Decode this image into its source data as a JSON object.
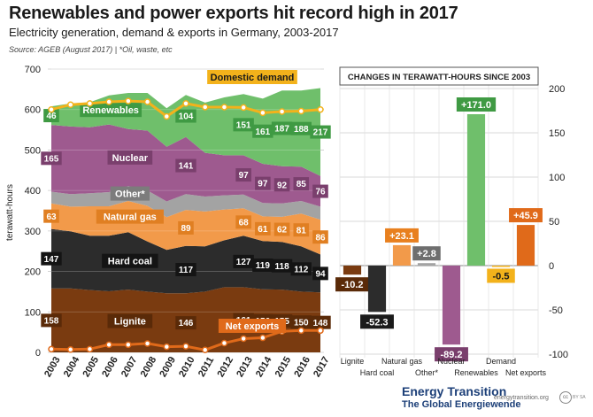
{
  "header": {
    "title": "Renewables and power exports hit record high in 2017",
    "subtitle": "Electricity generation, demand & exports in Germany, 2003-2017",
    "source": "Source: AGEB (August 2017) | *Oil, waste, etc"
  },
  "footer": {
    "brand_line1": "Energy Transition",
    "brand_line2": "The Global Energiewende",
    "site": "energytransition.org",
    "cc": "cc",
    "license": "BY SA"
  },
  "colors": {
    "lignite": "#7a3b10",
    "hard_coal": "#2c2c2c",
    "natural_gas": "#f29a4a",
    "other": "#a3a3a3",
    "nuclear": "#9e5a8f",
    "renewables": "#6fbf6b",
    "demand": "#f3b21b",
    "net_exports": "#e06a1a"
  },
  "chart_data": [
    {
      "type": "area",
      "ylabel": "terawatt-hours",
      "ylim": [
        0,
        700
      ],
      "yticks": [
        0,
        100,
        200,
        300,
        400,
        500,
        600,
        700
      ],
      "x": [
        2003,
        2004,
        2005,
        2006,
        2007,
        2008,
        2009,
        2010,
        2011,
        2012,
        2013,
        2014,
        2015,
        2016,
        2017
      ],
      "stacked": true,
      "grid": true,
      "series": [
        {
          "name": "Lignite",
          "values": [
            158,
            158,
            154,
            151,
            155,
            150,
            146,
            146,
            150,
            161,
            161,
            156,
            155,
            150,
            148
          ],
          "labels": {
            "2003": "158",
            "2010": "146",
            "2013": "161",
            "2014": "156",
            "2015": "155",
            "2016": "150",
            "2017": "148"
          }
        },
        {
          "name": "Hard coal",
          "values": [
            147,
            141,
            134,
            137,
            142,
            124,
            107,
            117,
            112,
            116,
            127,
            119,
            118,
            112,
            94
          ],
          "labels": {
            "2003": "147",
            "2010": "117",
            "2013": "127",
            "2014": "119",
            "2015": "118",
            "2016": "112",
            "2017": "94"
          }
        },
        {
          "name": "Natural gas",
          "values": [
            63,
            61,
            73,
            73,
            77,
            88,
            81,
            89,
            86,
            76,
            68,
            61,
            62,
            81,
            86
          ],
          "labels": {
            "2003": "63",
            "2010": "89",
            "2013": "68",
            "2014": "61",
            "2015": "62",
            "2016": "81",
            "2017": "86"
          }
        },
        {
          "name": "Other*",
          "values": [
            29,
            31,
            32,
            35,
            37,
            38,
            39,
            39,
            37,
            35,
            34,
            33,
            33,
            31,
            32
          ],
          "labels": {}
        },
        {
          "name": "Nuclear",
          "values": [
            165,
            167,
            163,
            167,
            141,
            148,
            135,
            141,
            108,
            99,
            97,
            97,
            92,
            85,
            76
          ],
          "labels": {
            "2003": "165",
            "2010": "141",
            "2013": "97",
            "2014": "97",
            "2015": "92",
            "2016": "85",
            "2017": "76"
          }
        },
        {
          "name": "Renewables",
          "values": [
            46,
            57,
            62,
            72,
            89,
            93,
            95,
            104,
            124,
            143,
            151,
            161,
            187,
            188,
            217
          ],
          "labels": {
            "2003": "46",
            "2010": "104",
            "2013": "151",
            "2014": "161",
            "2015": "187",
            "2016": "188",
            "2017": "217"
          }
        }
      ],
      "lines": [
        {
          "name": "Domestic demand",
          "values": [
            600,
            612,
            615,
            619,
            621,
            619,
            583,
            615,
            606,
            606,
            605,
            592,
            595,
            596,
            600
          ]
        },
        {
          "name": "Net exports",
          "values": [
            8,
            7,
            8,
            19,
            19,
            22,
            14,
            15,
            6,
            23,
            34,
            36,
            52,
            54,
            54
          ]
        }
      ]
    },
    {
      "type": "bar",
      "title": "CHANGES IN TERAWATT-HOURS SINCE 2003",
      "categories": [
        "Lignite",
        "Hard coal",
        "Natural gas",
        "Other*",
        "Nuclear",
        "Renewables",
        "Demand",
        "Net exports"
      ],
      "values": [
        -10.2,
        -52.3,
        23.1,
        2.8,
        -89.2,
        171.0,
        -0.5,
        45.9
      ],
      "labels": [
        "-10.2",
        "-52.3",
        "+23.1",
        "+2.8",
        "-89.2",
        "+171.0",
        "-0.5",
        "+45.9"
      ],
      "ylim": [
        -100,
        200
      ],
      "yticks": [
        "-100",
        "-50",
        "0",
        "50",
        "100",
        "150",
        "200"
      ],
      "grid": true
    }
  ]
}
